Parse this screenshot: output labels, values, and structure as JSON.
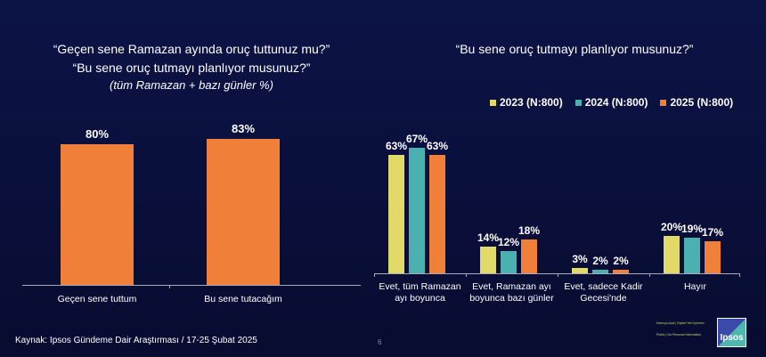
{
  "left_chart": {
    "title_line1": "“Geçen sene Ramazan ayında oruç tuttunuz mu?”",
    "title_line2": "“Bu sene oruç tutmayı planlıyor musunuz?”",
    "subtitle": "(tüm Ramazan + bazı günler %)"
  },
  "right_chart": {
    "title": "“Bu sene oruç tutmayı planlıyor musunuz?”"
  },
  "chart_data": [
    {
      "type": "bar",
      "title": "“Geçen sene Ramazan ayında oruç tuttunuz mu?” “Bu sene oruç tutmayı planlıyor musunuz?” (tüm Ramazan + bazı günler %)",
      "categories": [
        "Geçen sene tuttum",
        "Bu sene tutacağım"
      ],
      "values": [
        80,
        83
      ],
      "labels": [
        "80%",
        "83%"
      ],
      "color": "#f07f3a"
    },
    {
      "type": "bar",
      "title": "“Bu sene oruç tutmayı planlıyor musunuz?”",
      "categories": [
        "Evet, tüm Ramazan ayı boyunca",
        "Evet, Ramazan ayı boyunca bazı günler",
        "Evet, sadece Kadir Gecesi'nde",
        "Hayır"
      ],
      "legend_position": "top-right",
      "series": [
        {
          "name": "2023 (N:800)",
          "color": "#e2da68",
          "values": [
            63,
            14,
            3,
            20
          ]
        },
        {
          "name": "2024 (N:800)",
          "color": "#4bb0b0",
          "values": [
            67,
            12,
            2,
            19
          ]
        },
        {
          "name": "2025 (N:800)",
          "color": "#f07f3a",
          "values": [
            63,
            18,
            2,
            17
          ]
        }
      ]
    }
  ],
  "footer": {
    "source": "Kaynak: Ipsos Gündeme Dair Araştırması / 17-25 Şubat 2025",
    "page": "6",
    "class1": "Kamuya Açık | Kişisel Veri İçermez",
    "class2": "Public | No Personal Information",
    "logo": "Ipsos"
  }
}
